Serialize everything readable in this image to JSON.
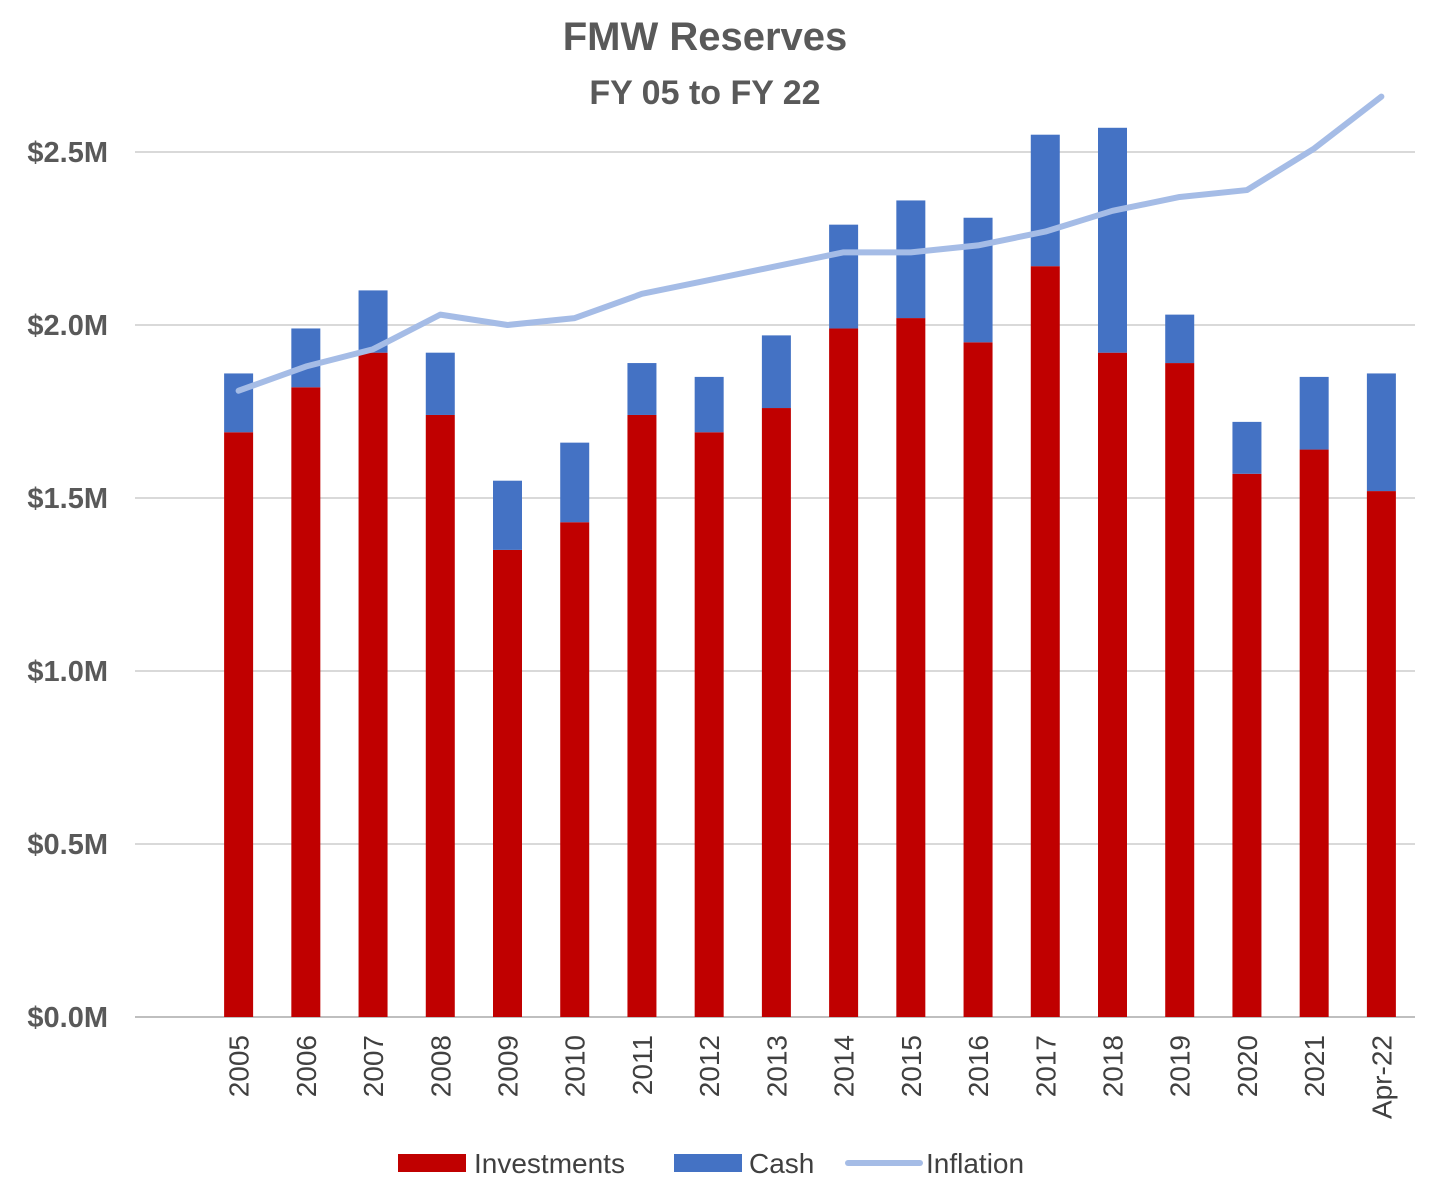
{
  "chart_data": {
    "type": "bar",
    "stacked": true,
    "title": "FMW Reserves",
    "subtitle": "FY 05 to FY 22",
    "categories": [
      "2005",
      "2006",
      "2007",
      "2008",
      "2009",
      "2010",
      "2011",
      "2012",
      "2013",
      "2014",
      "2015",
      "2016",
      "2017",
      "2018",
      "2019",
      "2020",
      "2021",
      "Apr-22"
    ],
    "series": [
      {
        "name": "Investments",
        "kind": "bar",
        "color": "#C00000",
        "values": [
          1.69,
          1.82,
          1.92,
          1.74,
          1.35,
          1.43,
          1.74,
          1.69,
          1.76,
          1.99,
          2.02,
          1.95,
          2.17,
          1.92,
          1.89,
          1.57,
          1.64,
          1.52
        ]
      },
      {
        "name": "Cash",
        "kind": "bar",
        "color": "#4472C4",
        "values": [
          0.17,
          0.17,
          0.18,
          0.18,
          0.2,
          0.23,
          0.15,
          0.16,
          0.21,
          0.3,
          0.34,
          0.36,
          0.38,
          0.65,
          0.14,
          0.15,
          0.21,
          0.34
        ]
      },
      {
        "name": "Inflation",
        "kind": "line",
        "color": "#A5BCE6",
        "values": [
          1.81,
          1.88,
          1.93,
          2.03,
          2.0,
          2.02,
          2.09,
          2.13,
          2.17,
          2.21,
          2.21,
          2.23,
          2.27,
          2.33,
          2.37,
          2.39,
          2.51,
          2.66
        ]
      }
    ],
    "yaxis": {
      "ticks": [
        "$0.0M",
        "$0.5M",
        "$1.0M",
        "$1.5M",
        "$2.0M",
        "$2.5M"
      ],
      "tick_values": [
        0,
        0.5,
        1.0,
        1.5,
        2.0,
        2.5
      ],
      "ylim": [
        0,
        2.5
      ]
    },
    "grid": true,
    "legend_position": "bottom"
  }
}
